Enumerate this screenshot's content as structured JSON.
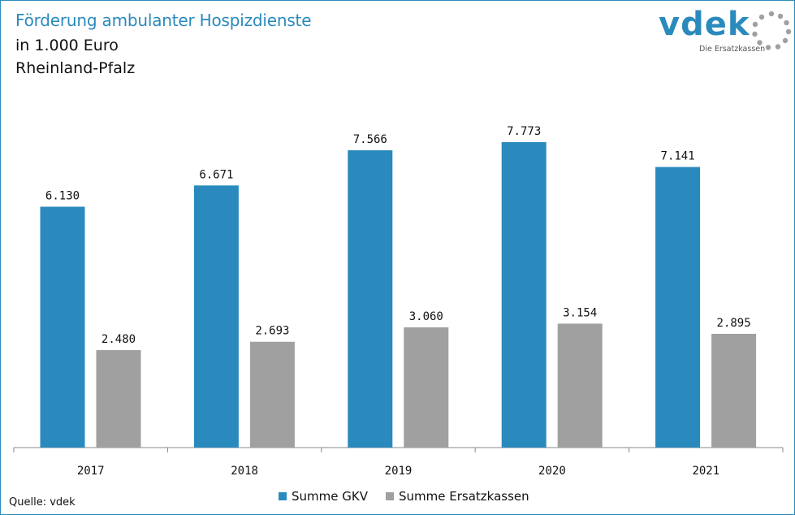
{
  "header": {
    "title": "Förderung ambulanter Hospizdienste",
    "subtitle1": "in 1.000 Euro",
    "subtitle2": "Rheinland-Pfalz"
  },
  "logo": {
    "name": "vdek",
    "tagline": "Die Ersatzkassen"
  },
  "source": "Quelle: vdek",
  "colors": {
    "gkv": "#2a8abd",
    "ersatz": "#a0a0a0",
    "accent": "#2a8abd"
  },
  "chart_data": {
    "type": "bar",
    "title": "Förderung ambulanter Hospizdienste",
    "categories": [
      "2017",
      "2018",
      "2019",
      "2020",
      "2021"
    ],
    "series": [
      {
        "name": "Summe GKV",
        "values": [
          6130,
          6671,
          7566,
          7773,
          7141
        ],
        "labels": [
          "6.130",
          "6.671",
          "7.566",
          "7.773",
          "7.141"
        ]
      },
      {
        "name": "Summe Ersatzkassen",
        "values": [
          2480,
          2693,
          3060,
          3154,
          2895
        ],
        "labels": [
          "2.480",
          "2.693",
          "3.060",
          "3.154",
          "2.895"
        ]
      }
    ],
    "ylim": [
      0,
      8000
    ],
    "grid": false,
    "legend": "bottom",
    "xlabel": "",
    "ylabel": ""
  }
}
